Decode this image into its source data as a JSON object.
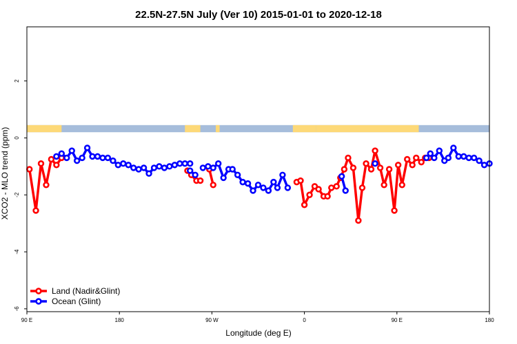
{
  "chart_data": {
    "type": "line",
    "title": "22.5N-27.5N July (Ver 10)   2015-01-01 to 2020-12-18",
    "xlabel": "Longitude (deg E)",
    "ylabel": "XCO2 - MLO trend (ppm)",
    "xlim": [
      -90,
      270
    ],
    "ylim": [
      -6.1,
      3.9
    ],
    "x_ticks": [
      {
        "value": -90,
        "label": "90 E"
      },
      {
        "value": -18,
        "label": "180"
      },
      {
        "value": 54,
        "label": "90 W"
      },
      {
        "value": 126,
        "label": "0"
      },
      {
        "value": 198,
        "label": "90 E"
      },
      {
        "value": 270,
        "label": "180"
      }
    ],
    "y_ticks": [
      {
        "value": 2,
        "label": "2"
      },
      {
        "value": 0,
        "label": "0"
      },
      {
        "value": -2,
        "label": "-2"
      },
      {
        "value": -4,
        "label": "-4"
      },
      {
        "value": -6,
        "label": "-6"
      }
    ],
    "land_mask": {
      "y_bottom": 0.2,
      "y_top": 0.45,
      "ocean_color": "#a6bddb",
      "land_color": "#fdd978",
      "land_ranges": [
        [
          -90,
          -63
        ],
        [
          33,
          45
        ],
        [
          57,
          60
        ],
        [
          117,
          135
        ],
        [
          135,
          215
        ]
      ]
    },
    "legend": {
      "position": "bottom-left"
    },
    "series": [
      {
        "name": "Land (Nadir&Glint)",
        "color": "#ff0000",
        "segments": [
          {
            "x": [
              -88,
              -83,
              -79,
              -75,
              -71,
              -67,
              -63
            ],
            "y": [
              -1.1,
              -2.55,
              -0.9,
              -1.65,
              -0.75,
              -0.95,
              -0.7
            ]
          },
          {
            "x": [
              35,
              38,
              42,
              45
            ],
            "y": [
              -1.15,
              -1.3,
              -1.5,
              -1.5
            ]
          },
          {
            "x": [
              52,
              55
            ],
            "y": [
              -1.1,
              -1.65
            ]
          },
          {
            "x": [
              120,
              123,
              126,
              130,
              134,
              137,
              141,
              144,
              147,
              151,
              154,
              157,
              160,
              164,
              168,
              171,
              174,
              178,
              181,
              185,
              188,
              192,
              196,
              199,
              202,
              206,
              210,
              213,
              217,
              220,
              223
            ],
            "y": [
              -1.55,
              -1.5,
              -2.35,
              -2.0,
              -1.7,
              -1.8,
              -2.05,
              -2.05,
              -1.75,
              -1.7,
              -1.4,
              -1.1,
              -0.7,
              -1.05,
              -2.9,
              -1.75,
              -0.9,
              -1.1,
              -0.45,
              -1.05,
              -1.65,
              -1.1,
              -2.55,
              -0.95,
              -1.65,
              -0.75,
              -0.95,
              -0.7,
              -0.85,
              -0.7,
              -0.7
            ]
          }
        ]
      },
      {
        "name": "Ocean (Glint)",
        "color": "#0000ff",
        "segments": [
          {
            "x": [
              -67,
              -63,
              -59,
              -55,
              -51,
              -47,
              -43,
              -39,
              -35,
              -31,
              -27,
              -23,
              -19,
              -15,
              -11,
              -7,
              -3,
              1,
              5,
              9,
              13,
              17,
              21,
              25,
              29,
              33,
              37
            ],
            "y": [
              -0.65,
              -0.55,
              -0.7,
              -0.45,
              -0.8,
              -0.7,
              -0.35,
              -0.65,
              -0.65,
              -0.7,
              -0.7,
              -0.8,
              -0.95,
              -0.9,
              -0.95,
              -1.05,
              -1.1,
              -1.05,
              -1.25,
              -1.05,
              -1.0,
              -1.05,
              -1.0,
              -0.95,
              -0.9,
              -0.9,
              -0.9
            ]
          },
          {
            "x": [
              37,
              41
            ],
            "y": [
              -1.15,
              -1.3
            ]
          },
          {
            "x": [
              47,
              51,
              55,
              59,
              63,
              67,
              70,
              74,
              78,
              82,
              86,
              90,
              94,
              98,
              102,
              105,
              109,
              113
            ],
            "y": [
              -1.05,
              -1.0,
              -1.05,
              -0.9,
              -1.4,
              -1.1,
              -1.1,
              -1.3,
              -1.55,
              -1.6,
              -1.85,
              -1.65,
              -1.75,
              -1.85,
              -1.55,
              -1.75,
              -1.3,
              -1.75
            ]
          },
          {
            "x": [
              155,
              158
            ],
            "y": [
              -1.35,
              -1.85
            ]
          },
          {
            "x": [
              181
            ],
            "y": [
              -0.9
            ]
          },
          {
            "x": [
              221,
              224,
              227,
              231,
              235,
              238,
              242,
              246,
              250,
              254,
              258,
              262,
              266,
              270
            ],
            "y": [
              -0.7,
              -0.55,
              -0.7,
              -0.45,
              -0.8,
              -0.7,
              -0.35,
              -0.65,
              -0.65,
              -0.7,
              -0.7,
              -0.8,
              -0.95,
              -0.9
            ]
          }
        ]
      }
    ]
  }
}
